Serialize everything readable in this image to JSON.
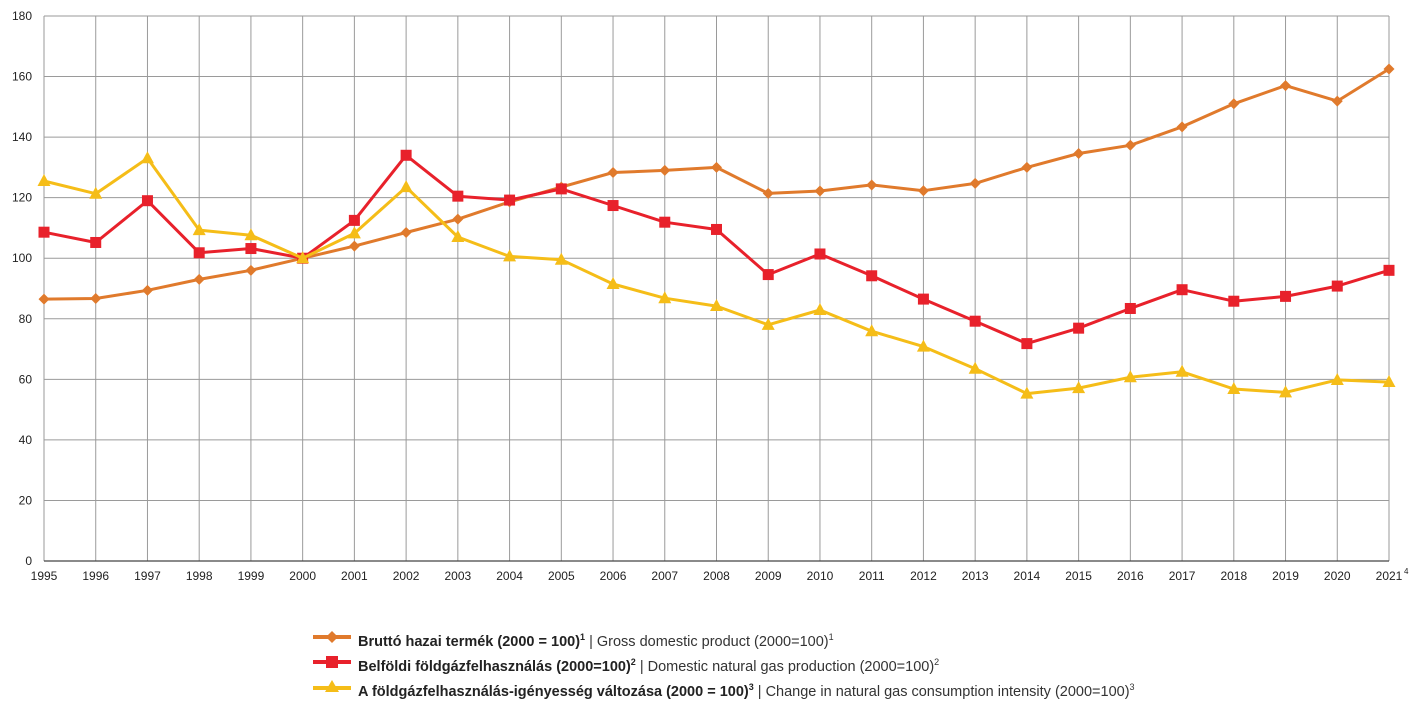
{
  "chart_data": {
    "type": "line",
    "x": [
      "1995",
      "1996",
      "1997",
      "1998",
      "1999",
      "2000",
      "2001",
      "2002",
      "2003",
      "2004",
      "2005",
      "2006",
      "2007",
      "2008",
      "2009",
      "2010",
      "2011",
      "2012",
      "2013",
      "2014",
      "2015",
      "2016",
      "2017",
      "2018",
      "2019",
      "2020",
      "2021"
    ],
    "x_tick_labels": [
      "1995",
      "1996",
      "1997",
      "1998",
      "1999",
      "2000",
      "2001",
      "2002",
      "2003",
      "2004",
      "2005",
      "2006",
      "2007",
      "2008",
      "2009",
      "2010",
      "2011",
      "2012",
      "2013",
      "2014",
      "2015",
      "2016",
      "2017",
      "2018",
      "2019",
      "2020",
      "2021"
    ],
    "last_tick_footnote": "4",
    "ylim": [
      0,
      180
    ],
    "yticks": [
      0,
      20,
      40,
      60,
      80,
      100,
      120,
      140,
      160,
      180
    ],
    "grid": true,
    "legend_position": "bottom-center",
    "series": [
      {
        "name": "Bruttó hazai termék (2000 = 100)",
        "name_sup": "1",
        "name_en": "Gross domestic product (2000=100)",
        "name_en_sup": "1",
        "color": "#e07a2c",
        "marker": "diamond",
        "values": [
          86.5,
          86.7,
          89.4,
          93.0,
          96.0,
          100,
          104.0,
          108.5,
          112.9,
          118.6,
          123.5,
          128.3,
          129.0,
          130.0,
          121.4,
          122.2,
          124.2,
          122.3,
          124.7,
          130.0,
          134.6,
          137.3,
          143.4,
          151.0,
          157.0,
          151.9,
          162.5
        ]
      },
      {
        "name": "Belföldi földgázfelhasználás (2000=100)",
        "name_sup": "2",
        "name_en": "Domestic natural gas production (2000=100)",
        "name_en_sup": "2",
        "color": "#e8212b",
        "marker": "square",
        "values": [
          108.6,
          105.2,
          119.0,
          101.8,
          103.2,
          100,
          112.5,
          134.0,
          120.5,
          119.2,
          122.9,
          117.4,
          111.9,
          109.5,
          94.6,
          101.4,
          94.2,
          86.5,
          79.2,
          71.8,
          76.9,
          83.4,
          89.6,
          85.8,
          87.4,
          90.8,
          96.0
        ]
      },
      {
        "name": "A földgázfelhasználás-igényesség változása (2000 = 100)",
        "name_sup": "3",
        "name_en": "Change in natural gas consumption intensity (2000=100)",
        "name_en_sup": "3",
        "color": "#f5bd18",
        "marker": "triangle",
        "values": [
          125.5,
          121.3,
          133.0,
          109.3,
          107.6,
          100,
          108.2,
          123.5,
          107.0,
          100.6,
          99.5,
          91.5,
          86.8,
          84.2,
          78.0,
          82.9,
          75.9,
          70.8,
          63.5,
          55.3,
          57.1,
          60.7,
          62.5,
          56.8,
          55.7,
          59.8,
          59.1
        ]
      }
    ]
  }
}
